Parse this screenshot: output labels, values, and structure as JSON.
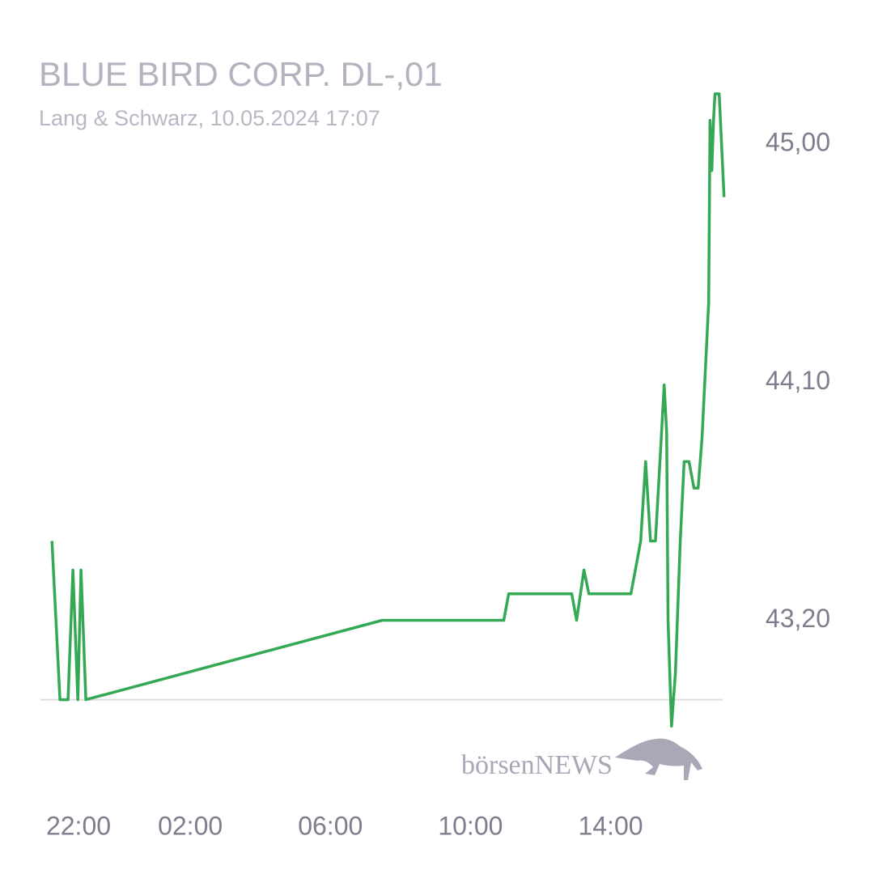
{
  "chart_data": {
    "type": "line",
    "title": "BLUE BIRD CORP. DL-,01",
    "subtitle": "Lang & Schwarz, 10.05.2024 17:07",
    "watermark": "börsenNEWS",
    "x": [
      22.05,
      22.28,
      22.51,
      22.65,
      22.79,
      22.88,
      23.02,
      31.48,
      34.95,
      35.09,
      36.89,
      37.03,
      37.24,
      37.38,
      38.58,
      38.72,
      38.86,
      39.0,
      39.14,
      39.28,
      39.41,
      39.53,
      39.6,
      39.64,
      39.74,
      39.85,
      39.99,
      40.1,
      40.24,
      40.38,
      40.5,
      40.61,
      40.8,
      40.84,
      40.89,
      40.94,
      40.98,
      41.1,
      41.24
    ],
    "series": [
      {
        "name": "BLUE BIRD CORP. DL-,01",
        "color": "#34a853",
        "values": [
          43.5,
          42.9,
          42.9,
          43.39,
          42.9,
          43.39,
          42.9,
          43.2,
          43.2,
          43.3,
          43.3,
          43.2,
          43.39,
          43.3,
          43.3,
          43.4,
          43.5,
          43.8,
          43.5,
          43.5,
          43.8,
          44.09,
          43.91,
          43.2,
          42.8,
          43.0,
          43.5,
          43.8,
          43.8,
          43.7,
          43.7,
          43.89,
          44.4,
          45.09,
          44.9,
          45.09,
          45.19,
          45.19,
          44.8
        ]
      }
    ],
    "reference_line": 42.9,
    "xlim": [
      22,
      41.2
    ],
    "xticks": [
      {
        "value": 22,
        "label": "22:00"
      },
      {
        "value": 26,
        "label": "02:00"
      },
      {
        "value": 30,
        "label": "06:00"
      },
      {
        "value": 34,
        "label": "10:00"
      },
      {
        "value": 38,
        "label": "14:00"
      }
    ],
    "ylim": [
      42.7,
      45.3
    ],
    "yticks": [
      {
        "value": 43.2,
        "label": "43,20"
      },
      {
        "value": 44.1,
        "label": "44,10"
      },
      {
        "value": 45,
        "label": "45,00"
      }
    ]
  }
}
